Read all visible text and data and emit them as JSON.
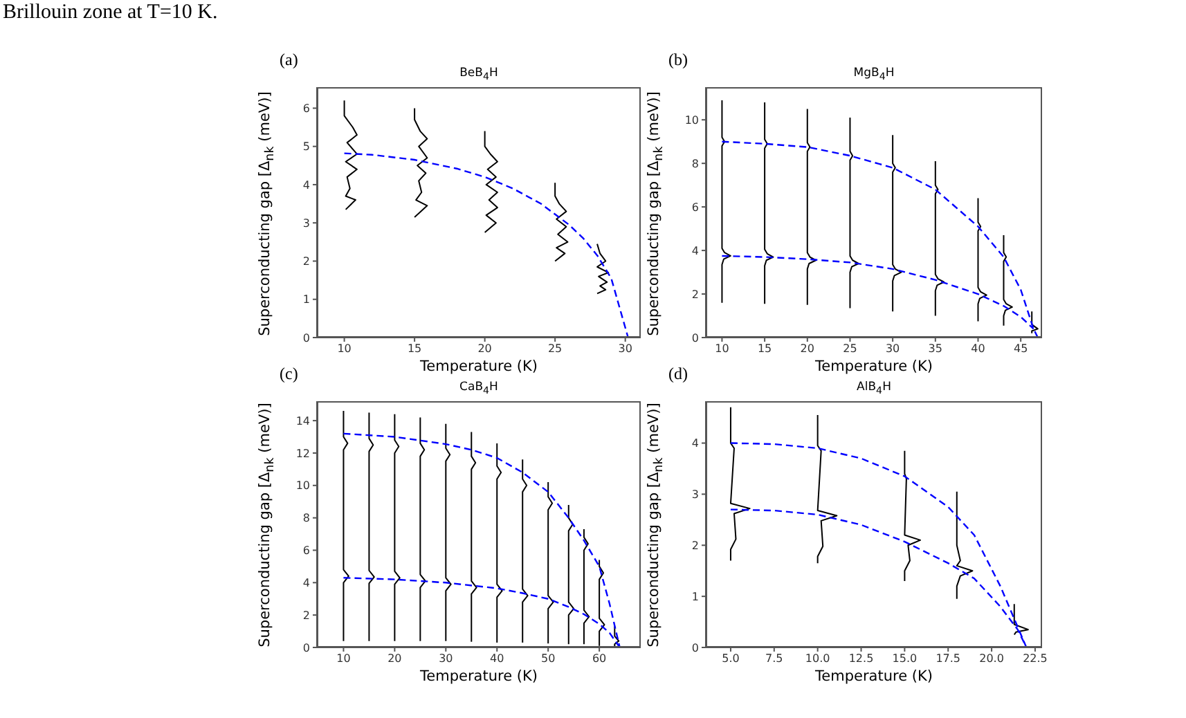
{
  "chart_data": [
    {
      "type": "line",
      "title": "BeB$_{4}$H",
      "xlabel": "Temperature (K)",
      "ylabel": "Superconducting gap [Δ$_{nk}$ (meV)]",
      "annotations": [
        "Brillouin zone at T=10 K.",
        "(a)"
      ],
      "xlim": [
        8.05,
        31.1
      ],
      "xticks": [
        10,
        15,
        20,
        25,
        30
      ],
      "ylim": [
        0,
        6.55
      ],
      "yticks": [
        0,
        1,
        2,
        3,
        4,
        5,
        6
      ],
      "series": [
        {
          "color": "#000000",
          "line_style": "solid",
          "x": [
            10,
            10,
            10.6,
            10.9,
            10.2,
            10.9,
            10.1,
            10.9,
            10.2,
            10.4,
            10.1,
            10.8,
            10.1
          ],
          "values": [
            6.2,
            5.8,
            5.5,
            5.3,
            5.1,
            4.8,
            4.6,
            4.4,
            4.2,
            3.9,
            3.7,
            3.6,
            3.35
          ]
        },
        {
          "color": "#000000",
          "line_style": "solid",
          "x": [
            15,
            15,
            15.4,
            15.9,
            15.3,
            15.9,
            15.2,
            15.8,
            15.3,
            15.5,
            15.1,
            15.9,
            15
          ],
          "values": [
            6.0,
            5.7,
            5.4,
            5.2,
            5.0,
            4.7,
            4.5,
            4.3,
            4.1,
            3.8,
            3.6,
            3.45,
            3.15
          ]
        },
        {
          "color": "#000000",
          "line_style": "solid",
          "x": [
            20,
            20,
            20.4,
            20.9,
            20.2,
            20.8,
            20.1,
            20.9,
            20.3,
            20.9,
            20.1,
            20.8,
            20
          ],
          "values": [
            5.4,
            5.0,
            4.8,
            4.6,
            4.4,
            4.2,
            4.0,
            3.8,
            3.6,
            3.4,
            3.2,
            3.0,
            2.75
          ]
        },
        {
          "color": "#000000",
          "line_style": "solid",
          "x": [
            25,
            25,
            25.3,
            25.8,
            25.1,
            25.8,
            25.2,
            25.9,
            25.1,
            25.7,
            25
          ],
          "values": [
            4.05,
            3.7,
            3.5,
            3.3,
            3.1,
            2.9,
            2.7,
            2.5,
            2.35,
            2.2,
            2.0
          ]
        },
        {
          "color": "#000000",
          "line_style": "solid",
          "x": [
            28,
            28.2,
            28.6,
            28,
            28.8,
            28.1,
            28.7,
            28.2,
            28.6,
            28
          ],
          "values": [
            2.45,
            2.2,
            2.0,
            1.85,
            1.7,
            1.6,
            1.45,
            1.35,
            1.25,
            1.15
          ]
        },
        {
          "color": "#0000ff",
          "line_style": "dashed",
          "x": [
            10,
            12,
            15,
            18,
            20,
            22,
            24,
            26,
            27,
            28,
            29,
            30.2
          ],
          "values": [
            4.82,
            4.78,
            4.65,
            4.42,
            4.2,
            3.9,
            3.5,
            2.95,
            2.6,
            2.15,
            1.55,
            0
          ]
        }
      ]
    },
    {
      "type": "line",
      "title": "MgB$_{4}$H",
      "xlabel": "Temperature (K)",
      "ylabel": "Superconducting gap [Δ$_{nk}$ (meV)]",
      "annotations": [
        "(b)"
      ],
      "xlim": [
        8.1,
        47.5
      ],
      "xticks": [
        10,
        15,
        20,
        25,
        30,
        35,
        40,
        45
      ],
      "ylim": [
        0,
        11.5
      ],
      "yticks": [
        0,
        2,
        4,
        6,
        8,
        10
      ],
      "series": [
        {
          "color": "#000000",
          "line_style": "solid",
          "x": [
            10,
            10,
            10.3,
            10,
            10,
            10.3,
            11,
            10.2,
            10,
            10
          ],
          "values": [
            10.9,
            9.2,
            9.0,
            8.8,
            4.1,
            3.9,
            3.75,
            3.6,
            3.35,
            1.6
          ]
        },
        {
          "color": "#000000",
          "line_style": "solid",
          "x": [
            15,
            15,
            15.3,
            15,
            15,
            15.3,
            16,
            15.2,
            15,
            15
          ],
          "values": [
            10.8,
            9.1,
            8.9,
            8.7,
            4.05,
            3.85,
            3.7,
            3.55,
            3.3,
            1.55
          ]
        },
        {
          "color": "#000000",
          "line_style": "solid",
          "x": [
            20,
            20,
            20.3,
            20,
            20,
            20.3,
            21,
            20.2,
            20,
            20
          ],
          "values": [
            10.5,
            8.95,
            8.75,
            8.55,
            3.9,
            3.7,
            3.55,
            3.4,
            3.15,
            1.5
          ]
        },
        {
          "color": "#000000",
          "line_style": "solid",
          "x": [
            25,
            25,
            25.3,
            25,
            25,
            25.3,
            26,
            25.2,
            25,
            25
          ],
          "values": [
            10.1,
            8.55,
            8.35,
            8.15,
            3.75,
            3.55,
            3.4,
            3.25,
            3.0,
            1.35
          ]
        },
        {
          "color": "#000000",
          "line_style": "solid",
          "x": [
            30,
            30,
            30.3,
            30,
            30,
            30.3,
            31,
            30.2,
            30,
            30
          ],
          "values": [
            9.3,
            8.0,
            7.8,
            7.6,
            3.35,
            3.15,
            3.0,
            2.85,
            2.6,
            1.2
          ]
        },
        {
          "color": "#000000",
          "line_style": "solid",
          "x": [
            35,
            35,
            35.3,
            35,
            35,
            35.3,
            36,
            35.2,
            35,
            35
          ],
          "values": [
            8.1,
            7.0,
            6.8,
            6.6,
            2.9,
            2.7,
            2.55,
            2.4,
            2.15,
            1.0
          ]
        },
        {
          "color": "#000000",
          "line_style": "solid",
          "x": [
            40,
            40,
            40.3,
            40,
            40,
            40.3,
            41,
            40.2,
            40,
            40
          ],
          "values": [
            6.4,
            5.3,
            5.1,
            4.9,
            2.3,
            2.1,
            1.95,
            1.8,
            1.55,
            0.75
          ]
        },
        {
          "color": "#000000",
          "line_style": "solid",
          "x": [
            43,
            43,
            43.3,
            43,
            43,
            43.3,
            44,
            43.2,
            43,
            43
          ],
          "values": [
            4.7,
            3.9,
            3.7,
            3.5,
            1.75,
            1.55,
            1.4,
            1.25,
            1.0,
            0.55
          ]
        },
        {
          "color": "#000000",
          "line_style": "solid",
          "x": [
            46.3,
            46.3,
            47,
            46.3,
            46.3
          ],
          "values": [
            1.2,
            0.6,
            0.4,
            0.3,
            0.2
          ]
        },
        {
          "color": "#0000ff",
          "line_style": "dashed",
          "x": [
            10,
            15,
            20,
            25,
            30,
            35,
            40,
            43,
            45,
            46.5,
            47
          ],
          "values": [
            9.0,
            8.9,
            8.75,
            8.35,
            7.8,
            6.8,
            5.1,
            3.7,
            2.2,
            0.4,
            0
          ]
        },
        {
          "color": "#0000ff",
          "line_style": "dashed",
          "x": [
            10,
            15,
            20,
            25,
            30,
            35,
            40,
            43,
            45,
            46.5
          ],
          "values": [
            3.75,
            3.7,
            3.6,
            3.45,
            3.15,
            2.65,
            2.0,
            1.45,
            0.95,
            0.4
          ]
        }
      ]
    },
    {
      "type": "line",
      "title": "CaB$_{4}$H",
      "xlabel": "Temperature (K)",
      "ylabel": "Superconducting gap [Δ$_{nk}$ (meV)]",
      "annotations": [
        "(c)"
      ],
      "xlim": [
        4.8,
        68.1
      ],
      "xticks": [
        10,
        20,
        30,
        40,
        50,
        60
      ],
      "ylim": [
        0,
        15.2
      ],
      "yticks": [
        0,
        2,
        4,
        6,
        8,
        10,
        12,
        14
      ],
      "series": [
        {
          "color": "#000000",
          "line_style": "solid",
          "x": [
            10,
            10,
            10.8,
            10,
            10,
            11,
            10,
            10
          ],
          "values": [
            14.6,
            13.0,
            12.6,
            12.2,
            4.8,
            4.4,
            4.0,
            0.4
          ]
        },
        {
          "color": "#000000",
          "line_style": "solid",
          "x": [
            15,
            15,
            15.8,
            15,
            15,
            16,
            15,
            15
          ],
          "values": [
            14.5,
            12.9,
            12.5,
            12.1,
            4.75,
            4.35,
            3.95,
            0.4
          ]
        },
        {
          "color": "#000000",
          "line_style": "solid",
          "x": [
            20,
            20,
            20.8,
            20,
            20,
            21,
            20,
            20
          ],
          "values": [
            14.4,
            12.8,
            12.4,
            12.0,
            4.7,
            4.3,
            3.9,
            0.4
          ]
        },
        {
          "color": "#000000",
          "line_style": "solid",
          "x": [
            25,
            25,
            25.8,
            25,
            25,
            26,
            25,
            25
          ],
          "values": [
            14.2,
            12.6,
            12.2,
            11.8,
            4.5,
            4.1,
            3.7,
            0.4
          ]
        },
        {
          "color": "#000000",
          "line_style": "solid",
          "x": [
            30,
            30,
            30.8,
            30,
            30,
            31,
            30,
            30
          ],
          "values": [
            13.8,
            12.3,
            11.9,
            11.5,
            4.3,
            3.9,
            3.5,
            0.4
          ]
        },
        {
          "color": "#000000",
          "line_style": "solid",
          "x": [
            35,
            35,
            35.8,
            35,
            35,
            36,
            35,
            35
          ],
          "values": [
            13.3,
            11.8,
            11.4,
            11.0,
            4.1,
            3.7,
            3.3,
            0.35
          ]
        },
        {
          "color": "#000000",
          "line_style": "solid",
          "x": [
            40,
            40,
            40.8,
            40,
            40,
            41,
            40,
            40
          ],
          "values": [
            12.6,
            11.2,
            10.8,
            10.4,
            3.9,
            3.5,
            3.1,
            0.3
          ]
        },
        {
          "color": "#000000",
          "line_style": "solid",
          "x": [
            45,
            45,
            45.8,
            45,
            45,
            46,
            45,
            45
          ],
          "values": [
            11.6,
            10.4,
            10.0,
            9.6,
            3.6,
            3.2,
            2.8,
            0.3
          ]
        },
        {
          "color": "#000000",
          "line_style": "solid",
          "x": [
            50,
            50,
            50.8,
            50,
            50,
            51,
            50,
            50
          ],
          "values": [
            10.2,
            9.3,
            8.9,
            8.5,
            3.2,
            2.8,
            2.4,
            0.25
          ]
        },
        {
          "color": "#000000",
          "line_style": "solid",
          "x": [
            54,
            54,
            54.8,
            54,
            54,
            55,
            54,
            54
          ],
          "values": [
            8.8,
            8.0,
            7.6,
            7.2,
            2.8,
            2.4,
            2.0,
            0.2
          ]
        },
        {
          "color": "#000000",
          "line_style": "solid",
          "x": [
            57,
            57,
            57.8,
            57,
            57,
            58,
            57,
            57
          ],
          "values": [
            7.3,
            6.8,
            6.4,
            6.0,
            2.3,
            1.9,
            1.5,
            0.2
          ]
        },
        {
          "color": "#000000",
          "line_style": "solid",
          "x": [
            60,
            60,
            60.8,
            60,
            60,
            61,
            60,
            60
          ],
          "values": [
            5.4,
            5.0,
            4.6,
            4.2,
            1.8,
            1.4,
            1.0,
            0.1
          ]
        },
        {
          "color": "#000000",
          "line_style": "solid",
          "x": [
            63,
            63,
            63.8,
            63,
            63
          ],
          "values": [
            1.3,
            0.7,
            0.4,
            0.2,
            0.05
          ]
        },
        {
          "color": "#0000ff",
          "line_style": "dashed",
          "x": [
            10,
            20,
            30,
            35,
            40,
            45,
            50,
            54,
            57,
            60,
            62,
            64
          ],
          "values": [
            13.2,
            13.0,
            12.55,
            12.2,
            11.7,
            10.8,
            9.6,
            8.0,
            6.6,
            5.0,
            2.7,
            0
          ]
        },
        {
          "color": "#0000ff",
          "line_style": "dashed",
          "x": [
            10,
            20,
            30,
            40,
            45,
            50,
            54,
            57,
            60,
            62,
            64
          ],
          "values": [
            4.3,
            4.2,
            4.0,
            3.65,
            3.35,
            3.0,
            2.5,
            2.05,
            1.45,
            0.9,
            0
          ]
        }
      ]
    },
    {
      "type": "line",
      "title": "AlB$_{4}$H",
      "xlabel": "Temperature (K)",
      "ylabel": "Superconducting gap [Δ$_{nk}$ (meV)]",
      "annotations": [
        "(d)"
      ],
      "xlim": [
        3.57,
        22.9
      ],
      "xticks": [
        {
          "value": 5,
          "label": "5.0"
        },
        {
          "value": 7.5,
          "label": "7.5"
        },
        {
          "value": 10,
          "label": "10.0"
        },
        {
          "value": 12.5,
          "label": "12.5"
        },
        {
          "value": 15,
          "label": "15.0"
        },
        {
          "value": 17.5,
          "label": "17.5"
        },
        {
          "value": 20,
          "label": "20.0"
        },
        {
          "value": 22.5,
          "label": "22.5"
        }
      ],
      "ylim": [
        0,
        4.82
      ],
      "yticks": [
        0,
        1,
        2,
        3,
        4
      ],
      "series": [
        {
          "color": "#000000",
          "line_style": "solid",
          "x": [
            5,
            5,
            5.2,
            5,
            6.1,
            5.2,
            5.3,
            5,
            5
          ],
          "values": [
            4.7,
            4.0,
            3.9,
            2.82,
            2.72,
            2.62,
            2.12,
            1.92,
            1.7
          ]
        },
        {
          "color": "#000000",
          "line_style": "solid",
          "x": [
            10,
            10,
            10.2,
            10,
            11.1,
            10.2,
            10.3,
            10,
            10
          ],
          "values": [
            4.55,
            3.95,
            3.85,
            2.68,
            2.58,
            2.48,
            1.98,
            1.78,
            1.65
          ]
        },
        {
          "color": "#000000",
          "line_style": "solid",
          "x": [
            15,
            15,
            15.1,
            15,
            15.9,
            15.2,
            15.3,
            15,
            15
          ],
          "values": [
            3.85,
            3.4,
            3.3,
            2.2,
            2.1,
            2.0,
            1.7,
            1.5,
            1.3
          ]
        },
        {
          "color": "#000000",
          "line_style": "solid",
          "x": [
            18,
            18,
            18.2,
            18,
            18.9,
            18.2,
            18,
            18
          ],
          "values": [
            3.05,
            2.0,
            1.7,
            1.6,
            1.5,
            1.4,
            1.2,
            0.95
          ]
        },
        {
          "color": "#000000",
          "line_style": "solid",
          "x": [
            21.3,
            21.3,
            22.1,
            21.4,
            21.3
          ],
          "values": [
            0.85,
            0.45,
            0.35,
            0.3,
            0.25
          ]
        },
        {
          "color": "#0000ff",
          "line_style": "dashed",
          "x": [
            5,
            7.5,
            10,
            12.5,
            15,
            17.5,
            19,
            20.5,
            21.5,
            22
          ],
          "values": [
            4.0,
            3.98,
            3.9,
            3.7,
            3.35,
            2.75,
            2.2,
            1.2,
            0.4,
            0
          ]
        },
        {
          "color": "#0000ff",
          "line_style": "dashed",
          "x": [
            5,
            7.5,
            10,
            12.5,
            15,
            17.5,
            19,
            20.5,
            21.5,
            22
          ],
          "values": [
            2.7,
            2.68,
            2.6,
            2.4,
            2.07,
            1.65,
            1.35,
            0.8,
            0.35,
            0
          ]
        }
      ]
    }
  ]
}
